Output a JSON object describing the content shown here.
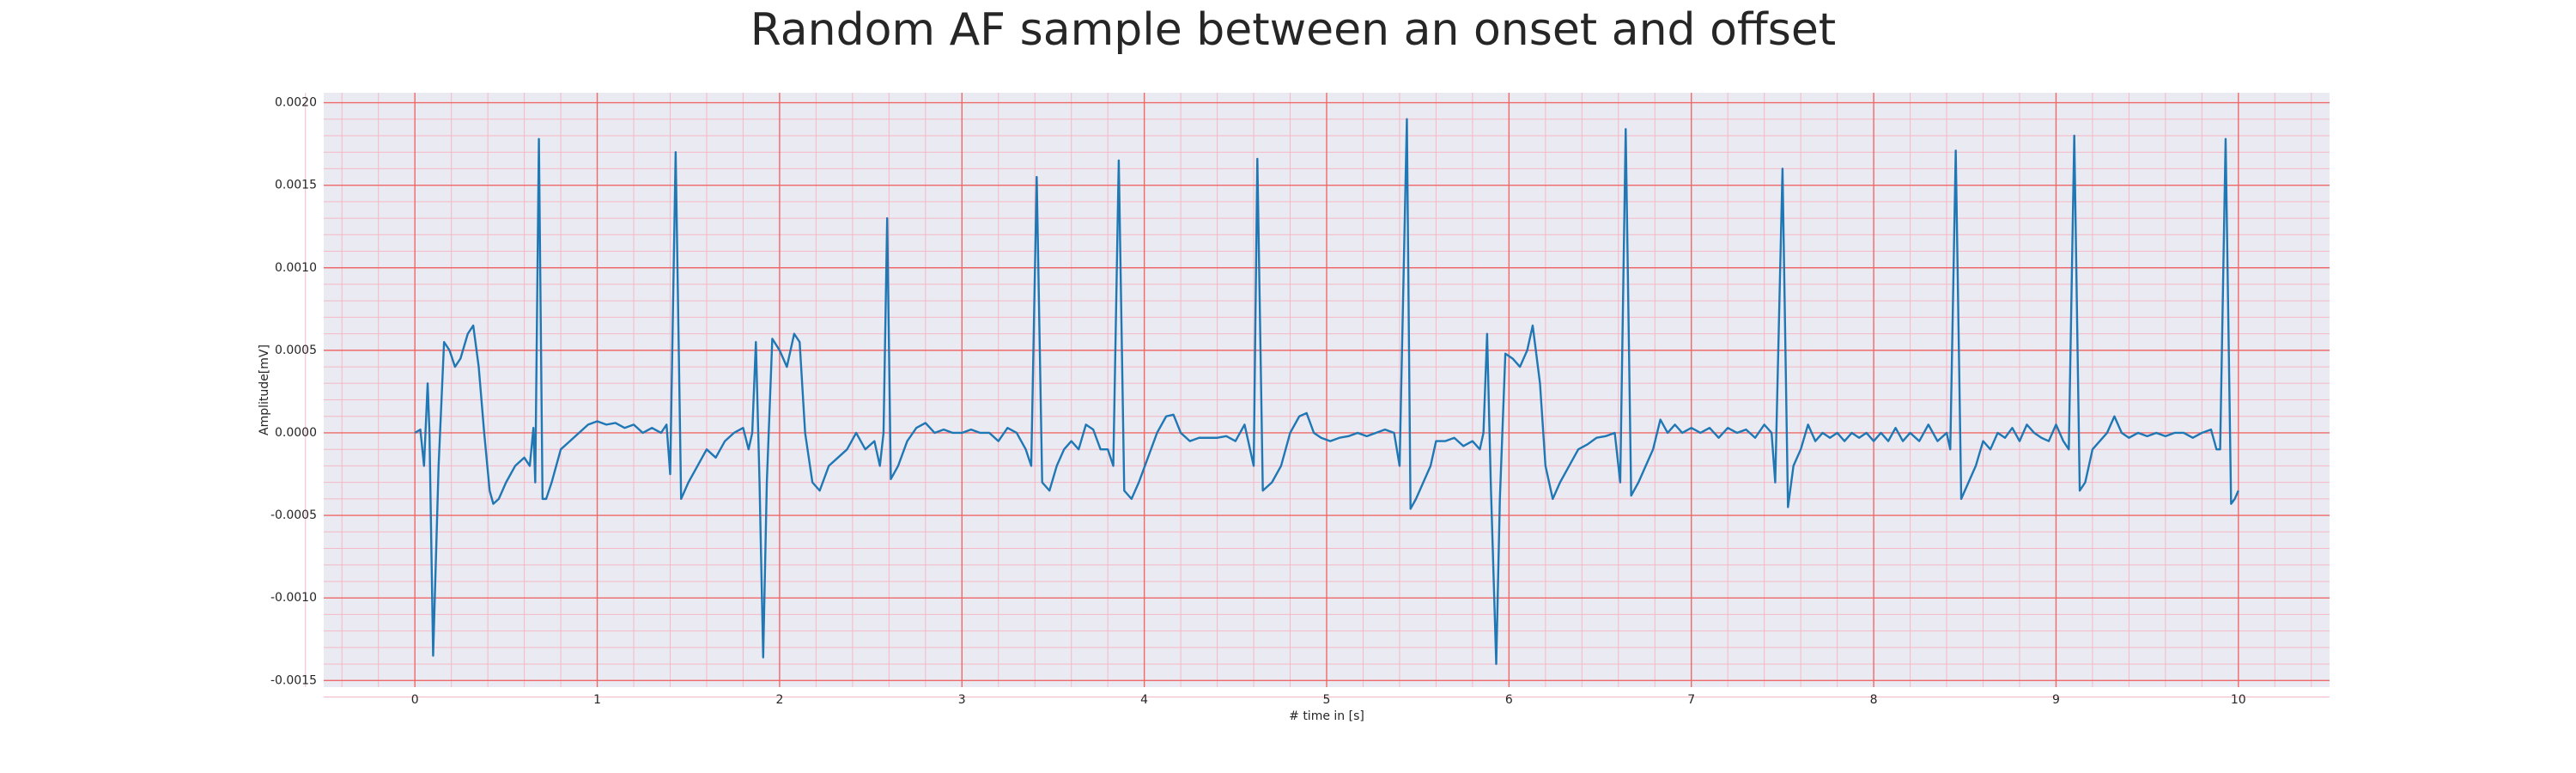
{
  "chart_data": {
    "type": "line",
    "title": "Random AF sample between an onset and offset",
    "xlabel": "# time in [s]",
    "ylabel": "Amplitude[mV]",
    "color": "#1f77b4",
    "grid": true,
    "minor_grid": 5,
    "xlim": [
      -0.5,
      10.5
    ],
    "ylim": [
      -0.00154,
      0.00206
    ],
    "xticks": [
      0,
      1,
      2,
      3,
      4,
      5,
      6,
      7,
      8,
      9,
      10
    ],
    "yticks": [
      -0.0015,
      {
        "value": -0.001,
        "label": "-0.0010"
      },
      -0.0005,
      {
        "value": 0,
        "label": "0.0000"
      },
      0.0005,
      {
        "value": 0.001,
        "label": "0.0010"
      },
      0.0015,
      {
        "value": 0.002,
        "label": "0.0020"
      }
    ],
    "x": [
      0.0,
      0.03,
      0.05,
      0.07,
      0.08,
      0.1,
      0.13,
      0.16,
      0.19,
      0.22,
      0.25,
      0.29,
      0.32,
      0.35,
      0.38,
      0.41,
      0.43,
      0.46,
      0.5,
      0.55,
      0.6,
      0.63,
      0.65,
      0.66,
      0.68,
      0.7,
      0.72,
      0.75,
      0.8,
      0.85,
      0.9,
      0.95,
      1.0,
      1.05,
      1.1,
      1.15,
      1.2,
      1.25,
      1.3,
      1.35,
      1.38,
      1.4,
      1.43,
      1.46,
      1.5,
      1.55,
      1.6,
      1.65,
      1.7,
      1.75,
      1.8,
      1.83,
      1.85,
      1.87,
      1.89,
      1.91,
      1.93,
      1.96,
      2.0,
      2.04,
      2.08,
      2.11,
      2.14,
      2.18,
      2.22,
      2.27,
      2.32,
      2.37,
      2.42,
      2.47,
      2.52,
      2.55,
      2.57,
      2.59,
      2.61,
      2.65,
      2.7,
      2.75,
      2.8,
      2.85,
      2.9,
      2.95,
      3.0,
      3.05,
      3.1,
      3.15,
      3.2,
      3.25,
      3.3,
      3.35,
      3.38,
      3.41,
      3.44,
      3.48,
      3.52,
      3.56,
      3.6,
      3.64,
      3.68,
      3.72,
      3.76,
      3.8,
      3.83,
      3.86,
      3.89,
      3.93,
      3.97,
      4.02,
      4.07,
      4.12,
      4.16,
      4.2,
      4.25,
      4.3,
      4.35,
      4.4,
      4.45,
      4.5,
      4.55,
      4.58,
      4.6,
      4.62,
      4.65,
      4.7,
      4.75,
      4.8,
      4.85,
      4.89,
      4.93,
      4.97,
      5.02,
      5.07,
      5.12,
      5.17,
      5.22,
      5.27,
      5.32,
      5.37,
      5.4,
      5.44,
      5.46,
      5.49,
      5.53,
      5.57,
      5.6,
      5.65,
      5.7,
      5.75,
      5.8,
      5.84,
      5.86,
      5.88,
      5.9,
      5.93,
      5.95,
      5.98,
      6.02,
      6.06,
      6.1,
      6.13,
      6.17,
      6.2,
      6.24,
      6.28,
      6.33,
      6.38,
      6.43,
      6.48,
      6.53,
      6.58,
      6.61,
      6.64,
      6.67,
      6.71,
      6.75,
      6.79,
      6.83,
      6.87,
      6.91,
      6.95,
      7.0,
      7.05,
      7.1,
      7.15,
      7.2,
      7.25,
      7.3,
      7.35,
      7.4,
      7.44,
      7.46,
      7.5,
      7.53,
      7.56,
      7.6,
      7.64,
      7.68,
      7.72,
      7.76,
      7.8,
      7.84,
      7.88,
      7.92,
      7.96,
      8.0,
      8.04,
      8.08,
      8.12,
      8.16,
      8.2,
      8.25,
      8.3,
      8.35,
      8.4,
      8.42,
      8.45,
      8.48,
      8.52,
      8.56,
      8.6,
      8.64,
      8.68,
      8.72,
      8.76,
      8.8,
      8.84,
      8.88,
      8.92,
      8.96,
      9.0,
      9.04,
      9.07,
      9.1,
      9.13,
      9.16,
      9.2,
      9.24,
      9.28,
      9.32,
      9.36,
      9.4,
      9.45,
      9.5,
      9.55,
      9.6,
      9.65,
      9.7,
      9.75,
      9.8,
      9.85,
      9.88,
      9.9,
      9.93,
      9.96,
      9.98,
      10.0
    ],
    "values": [
      0.0,
      2e-05,
      -0.0002,
      0.0003,
      0.0,
      -0.00135,
      -0.0002,
      0.00055,
      0.0005,
      0.0004,
      0.00045,
      0.0006,
      0.00065,
      0.0004,
      0.0,
      -0.00035,
      -0.00043,
      -0.0004,
      -0.0003,
      -0.0002,
      -0.00015,
      -0.0002,
      3e-05,
      -0.0003,
      0.00178,
      -0.0004,
      -0.0004,
      -0.0003,
      -0.0001,
      -5e-05,
      0.0,
      5e-05,
      7e-05,
      5e-05,
      6e-05,
      3e-05,
      5e-05,
      0.0,
      3e-05,
      0.0,
      5e-05,
      -0.00025,
      0.0017,
      -0.0004,
      -0.0003,
      -0.0002,
      -0.0001,
      -0.00015,
      -5e-05,
      0.0,
      3e-05,
      -0.0001,
      0.0,
      0.00055,
      -0.0003,
      -0.00136,
      -0.0003,
      0.00057,
      0.0005,
      0.0004,
      0.0006,
      0.00055,
      0.0,
      -0.0003,
      -0.00035,
      -0.0002,
      -0.00015,
      -0.0001,
      0.0,
      -0.0001,
      -5e-05,
      -0.0002,
      0.0,
      0.0013,
      -0.00028,
      -0.0002,
      -5e-05,
      3e-05,
      6e-05,
      0.0,
      2e-05,
      0.0,
      0.0,
      2e-05,
      0.0,
      0.0,
      -5e-05,
      3e-05,
      0.0,
      -0.0001,
      -0.0002,
      0.00155,
      -0.0003,
      -0.00035,
      -0.0002,
      -0.0001,
      -5e-05,
      -0.0001,
      5e-05,
      2e-05,
      -0.0001,
      -0.0001,
      -0.0002,
      0.00165,
      -0.00035,
      -0.0004,
      -0.0003,
      -0.00015,
      0.0,
      0.0001,
      0.00011,
      0.0,
      -5e-05,
      -3e-05,
      -3e-05,
      -3e-05,
      -2e-05,
      -5e-05,
      5e-05,
      -0.0001,
      -0.0002,
      0.00166,
      -0.00035,
      -0.0003,
      -0.0002,
      0.0,
      0.0001,
      0.00012,
      0.0,
      -3e-05,
      -5e-05,
      -3e-05,
      -2e-05,
      0.0,
      -2e-05,
      0.0,
      2e-05,
      0.0,
      -0.0002,
      0.0019,
      -0.00046,
      -0.0004,
      -0.0003,
      -0.0002,
      -5e-05,
      -5e-05,
      -3e-05,
      -8e-05,
      -5e-05,
      -0.0001,
      0.0,
      0.0006,
      -0.0003,
      -0.0014,
      -0.0004,
      0.00048,
      0.00045,
      0.0004,
      0.0005,
      0.00065,
      0.0003,
      -0.0002,
      -0.0004,
      -0.0003,
      -0.0002,
      -0.0001,
      -7e-05,
      -3e-05,
      -2e-05,
      0.0,
      -0.0003,
      0.00184,
      -0.00038,
      -0.0003,
      -0.0002,
      -0.0001,
      8e-05,
      0.0,
      5e-05,
      0.0,
      3e-05,
      0.0,
      3e-05,
      -3e-05,
      3e-05,
      0.0,
      2e-05,
      -3e-05,
      5e-05,
      0.0,
      -0.0003,
      0.0016,
      -0.00045,
      -0.0002,
      -0.0001,
      5e-05,
      -5e-05,
      0.0,
      -3e-05,
      0.0,
      -5e-05,
      0.0,
      -3e-05,
      0.0,
      -5e-05,
      0.0,
      -5e-05,
      3e-05,
      -5e-05,
      0.0,
      -5e-05,
      5e-05,
      -5e-05,
      0.0,
      -0.0001,
      0.00171,
      -0.0004,
      -0.0003,
      -0.0002,
      -5e-05,
      -0.0001,
      0.0,
      -3e-05,
      3e-05,
      -5e-05,
      5e-05,
      0.0,
      -3e-05,
      -5e-05,
      5e-05,
      -5e-05,
      -0.0001,
      0.0018,
      -0.00035,
      -0.0003,
      -0.0001,
      -5e-05,
      0.0,
      0.0001,
      0.0,
      -3e-05,
      0.0,
      -2e-05,
      0.0,
      -2e-05,
      0.0,
      0.0,
      -3e-05,
      0.0,
      2e-05,
      -0.0001,
      -0.0001,
      0.00178,
      -0.00043,
      -0.0004,
      -0.00035
    ]
  }
}
